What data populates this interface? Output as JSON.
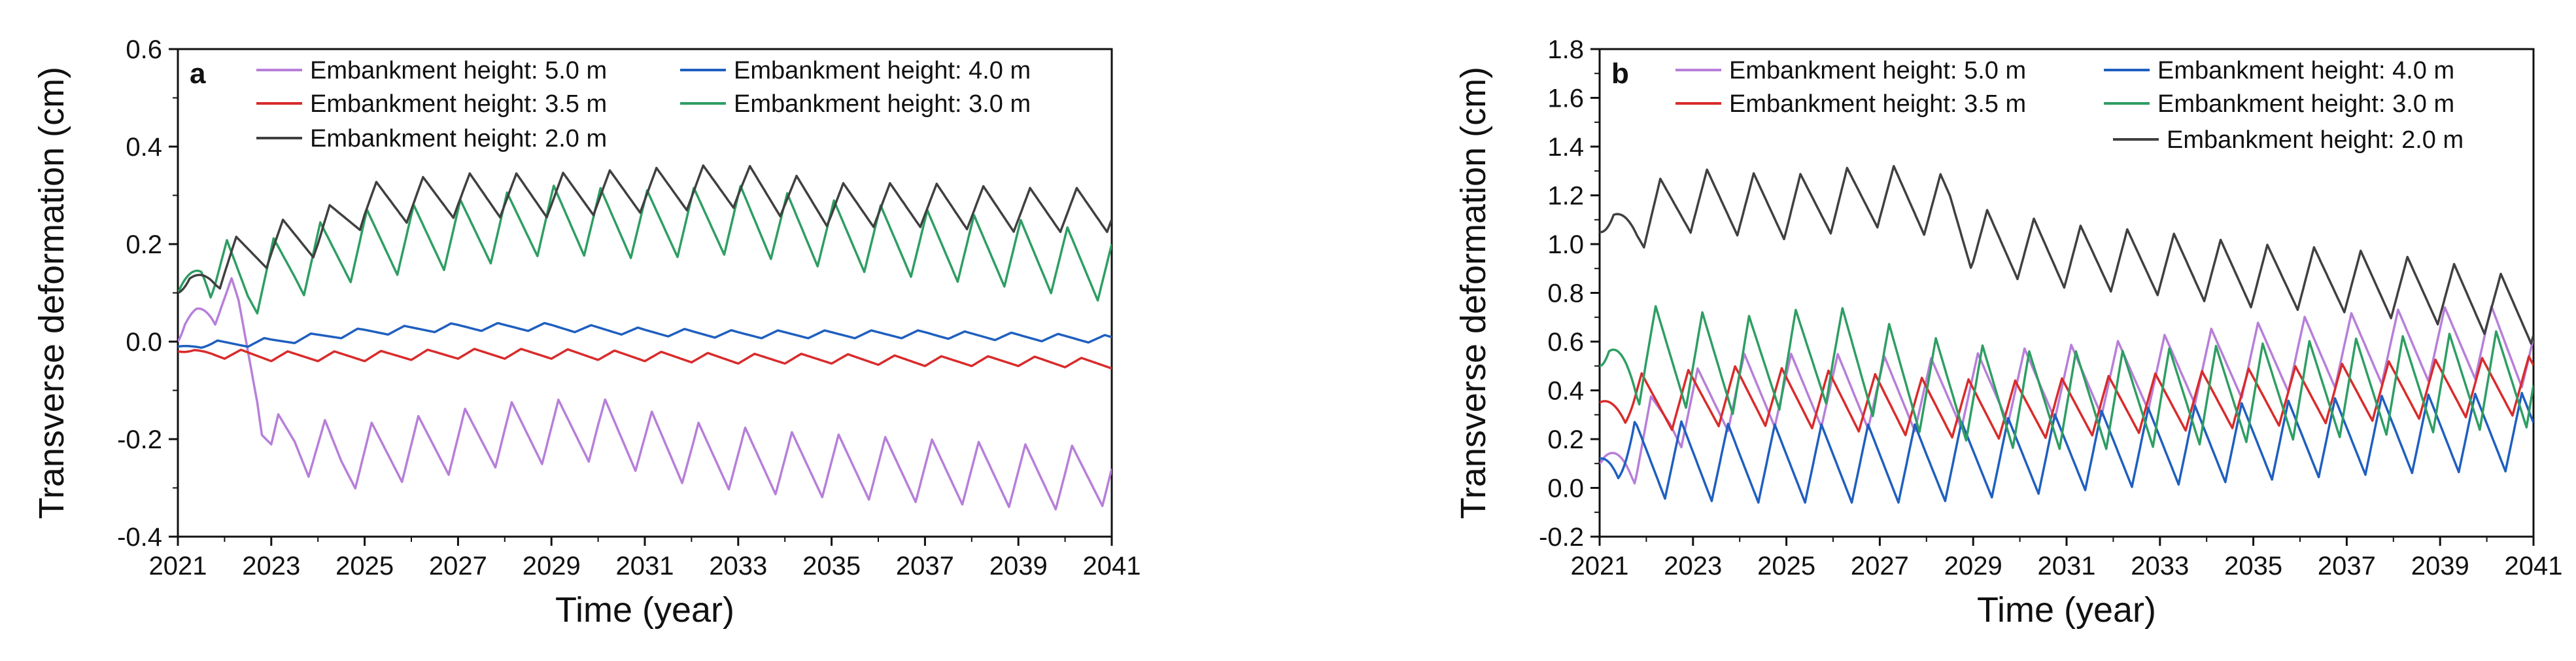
{
  "chart_data": [
    {
      "type": "line",
      "panel_label": "a",
      "xlabel": "Time (year)",
      "ylabel": "Transverse deformation (cm)",
      "xlim": [
        2021,
        2041
      ],
      "ylim": [
        -0.4,
        0.6
      ],
      "xticks": [
        "2021",
        "2023",
        "2025",
        "2027",
        "2029",
        "2031",
        "2033",
        "2035",
        "2037",
        "2039",
        "2041"
      ],
      "yticks": [
        "-0.4",
        "-0.2",
        "0.0",
        "0.2",
        "0.4",
        "0.6"
      ],
      "legend_position": "top",
      "series": [
        {
          "name": "Embankment height: 5.0 m",
          "color": "#b77fd9",
          "base": [
            [
              2021,
              0.0
            ],
            [
              2021.4,
              0.06
            ],
            [
              2021.8,
              0.1
            ],
            [
              2022.3,
              0.05
            ],
            [
              2022.7,
              -0.08
            ],
            [
              2023.0,
              -0.22
            ],
            [
              2023.5,
              -0.2
            ],
            [
              2024.5,
              -0.24
            ],
            [
              2026,
              -0.22
            ],
            [
              2028,
              -0.19
            ],
            [
              2030,
              -0.18
            ],
            [
              2032,
              -0.23
            ],
            [
              2034,
              -0.25
            ],
            [
              2036,
              -0.26
            ],
            [
              2038,
              -0.27
            ],
            [
              2040,
              -0.28
            ],
            [
              2041,
              -0.27
            ]
          ],
          "amp": 0.065,
          "period": 1.0,
          "phase": 0.2
        },
        {
          "name": "Embankment height: 4.0 m",
          "color": "#1f5fbf",
          "base": [
            [
              2021,
              -0.01
            ],
            [
              2023,
              0.0
            ],
            [
              2025,
              0.02
            ],
            [
              2027,
              0.03
            ],
            [
              2029,
              0.03
            ],
            [
              2031,
              0.02
            ],
            [
              2033,
              0.015
            ],
            [
              2035,
              0.015
            ],
            [
              2037,
              0.015
            ],
            [
              2039,
              0.01
            ],
            [
              2041,
              0.005
            ]
          ],
          "amp": 0.008,
          "period": 1.0,
          "phase": 0.5
        },
        {
          "name": "Embankment height: 3.5 m",
          "color": "#d92b2b",
          "base": [
            [
              2021,
              -0.02
            ],
            [
              2023,
              -0.03
            ],
            [
              2025,
              -0.03
            ],
            [
              2027,
              -0.025
            ],
            [
              2029,
              -0.025
            ],
            [
              2031,
              -0.03
            ],
            [
              2033,
              -0.035
            ],
            [
              2035,
              -0.035
            ],
            [
              2037,
              -0.04
            ],
            [
              2039,
              -0.04
            ],
            [
              2041,
              -0.045
            ]
          ],
          "amp": 0.01,
          "period": 1.0,
          "phase": 0.0
        },
        {
          "name": "Embankment height: 3.0 m",
          "color": "#2e9e63",
          "base": [
            [
              2021,
              0.1
            ],
            [
              2021.5,
              0.16
            ],
            [
              2022.5,
              0.12
            ],
            [
              2023.5,
              0.16
            ],
            [
              2025,
              0.2
            ],
            [
              2027,
              0.22
            ],
            [
              2029,
              0.25
            ],
            [
              2031,
              0.24
            ],
            [
              2033,
              0.25
            ],
            [
              2035,
              0.22
            ],
            [
              2037,
              0.2
            ],
            [
              2039,
              0.18
            ],
            [
              2041,
              0.15
            ]
          ],
          "amp": 0.07,
          "period": 1.0,
          "phase": 0.3
        },
        {
          "name": "Embankment height: 2.0 m",
          "color": "#404040",
          "base": [
            [
              2021,
              0.1
            ],
            [
              2022,
              0.16
            ],
            [
              2023,
              0.2
            ],
            [
              2024,
              0.22
            ],
            [
              2025,
              0.28
            ],
            [
              2027,
              0.3
            ],
            [
              2029,
              0.3
            ],
            [
              2031,
              0.31
            ],
            [
              2033,
              0.32
            ],
            [
              2035,
              0.28
            ],
            [
              2037,
              0.28
            ],
            [
              2039,
              0.27
            ],
            [
              2041,
              0.27
            ]
          ],
          "amp": 0.045,
          "period": 1.0,
          "phase": 0.1
        }
      ]
    },
    {
      "type": "line",
      "panel_label": "b",
      "xlabel": "Time (year)",
      "ylabel": "Transverse deformation (cm)",
      "xlim": [
        2021,
        2041
      ],
      "ylim": [
        -0.2,
        1.8
      ],
      "xticks": [
        "2021",
        "2023",
        "2025",
        "2027",
        "2029",
        "2031",
        "2033",
        "2035",
        "2037",
        "2039",
        "2041"
      ],
      "yticks": [
        "-0.2",
        "0.0",
        "0.2",
        "0.4",
        "0.6",
        "0.8",
        "1.0",
        "1.2",
        "1.4",
        "1.6",
        "1.8"
      ],
      "legend_position": "top",
      "series": [
        {
          "name": "Embankment height: 5.0 m",
          "color": "#b77fd9",
          "base": [
            [
              2021,
              0.1
            ],
            [
              2021.7,
              0.15
            ],
            [
              2022.5,
              0.3
            ],
            [
              2024,
              0.4
            ],
            [
              2026,
              0.4
            ],
            [
              2028,
              0.38
            ],
            [
              2030,
              0.42
            ],
            [
              2032,
              0.45
            ],
            [
              2034,
              0.5
            ],
            [
              2036,
              0.55
            ],
            [
              2038,
              0.58
            ],
            [
              2040,
              0.6
            ],
            [
              2041,
              0.55
            ]
          ],
          "amp": 0.15,
          "period": 1.0,
          "phase": 0.25
        },
        {
          "name": "Embankment height: 4.0 m",
          "color": "#1f5fbf",
          "base": [
            [
              2021,
              0.12
            ],
            [
              2022,
              0.12
            ],
            [
              2024,
              0.1
            ],
            [
              2026,
              0.1
            ],
            [
              2028,
              0.1
            ],
            [
              2030,
              0.13
            ],
            [
              2032,
              0.16
            ],
            [
              2034,
              0.18
            ],
            [
              2036,
              0.2
            ],
            [
              2038,
              0.22
            ],
            [
              2041,
              0.23
            ]
          ],
          "amp": 0.16,
          "period": 1.0,
          "phase": 0.6
        },
        {
          "name": "Embankment height: 3.5 m",
          "color": "#d92b2b",
          "base": [
            [
              2021,
              0.35
            ],
            [
              2022,
              0.35
            ],
            [
              2024,
              0.38
            ],
            [
              2026,
              0.36
            ],
            [
              2028,
              0.33
            ],
            [
              2030,
              0.32
            ],
            [
              2032,
              0.34
            ],
            [
              2034,
              0.36
            ],
            [
              2036,
              0.38
            ],
            [
              2038,
              0.4
            ],
            [
              2041,
              0.42
            ]
          ],
          "amp": 0.12,
          "period": 1.0,
          "phase": 0.45
        },
        {
          "name": "Embankment height: 3.0 m",
          "color": "#2e9e63",
          "base": [
            [
              2021,
              0.5
            ],
            [
              2022,
              0.55
            ],
            [
              2024,
              0.5
            ],
            [
              2026,
              0.55
            ],
            [
              2028,
              0.42
            ],
            [
              2030,
              0.36
            ],
            [
              2032,
              0.36
            ],
            [
              2034,
              0.38
            ],
            [
              2036,
              0.4
            ],
            [
              2038,
              0.42
            ],
            [
              2041,
              0.45
            ]
          ],
          "amp": 0.2,
          "period": 1.0,
          "phase": 0.15
        },
        {
          "name": "Embankment height: 2.0 m",
          "color": "#404040",
          "base": [
            [
              2021,
              1.05
            ],
            [
              2022,
              1.12
            ],
            [
              2023,
              1.18
            ],
            [
              2025,
              1.15
            ],
            [
              2027,
              1.2
            ],
            [
              2028.5,
              1.15
            ],
            [
              2029,
              1.02
            ],
            [
              2031,
              0.95
            ],
            [
              2033,
              0.92
            ],
            [
              2035,
              0.87
            ],
            [
              2037,
              0.85
            ],
            [
              2039,
              0.8
            ],
            [
              2041,
              0.72
            ]
          ],
          "amp": 0.13,
          "period": 1.0,
          "phase": 0.05
        }
      ]
    }
  ]
}
